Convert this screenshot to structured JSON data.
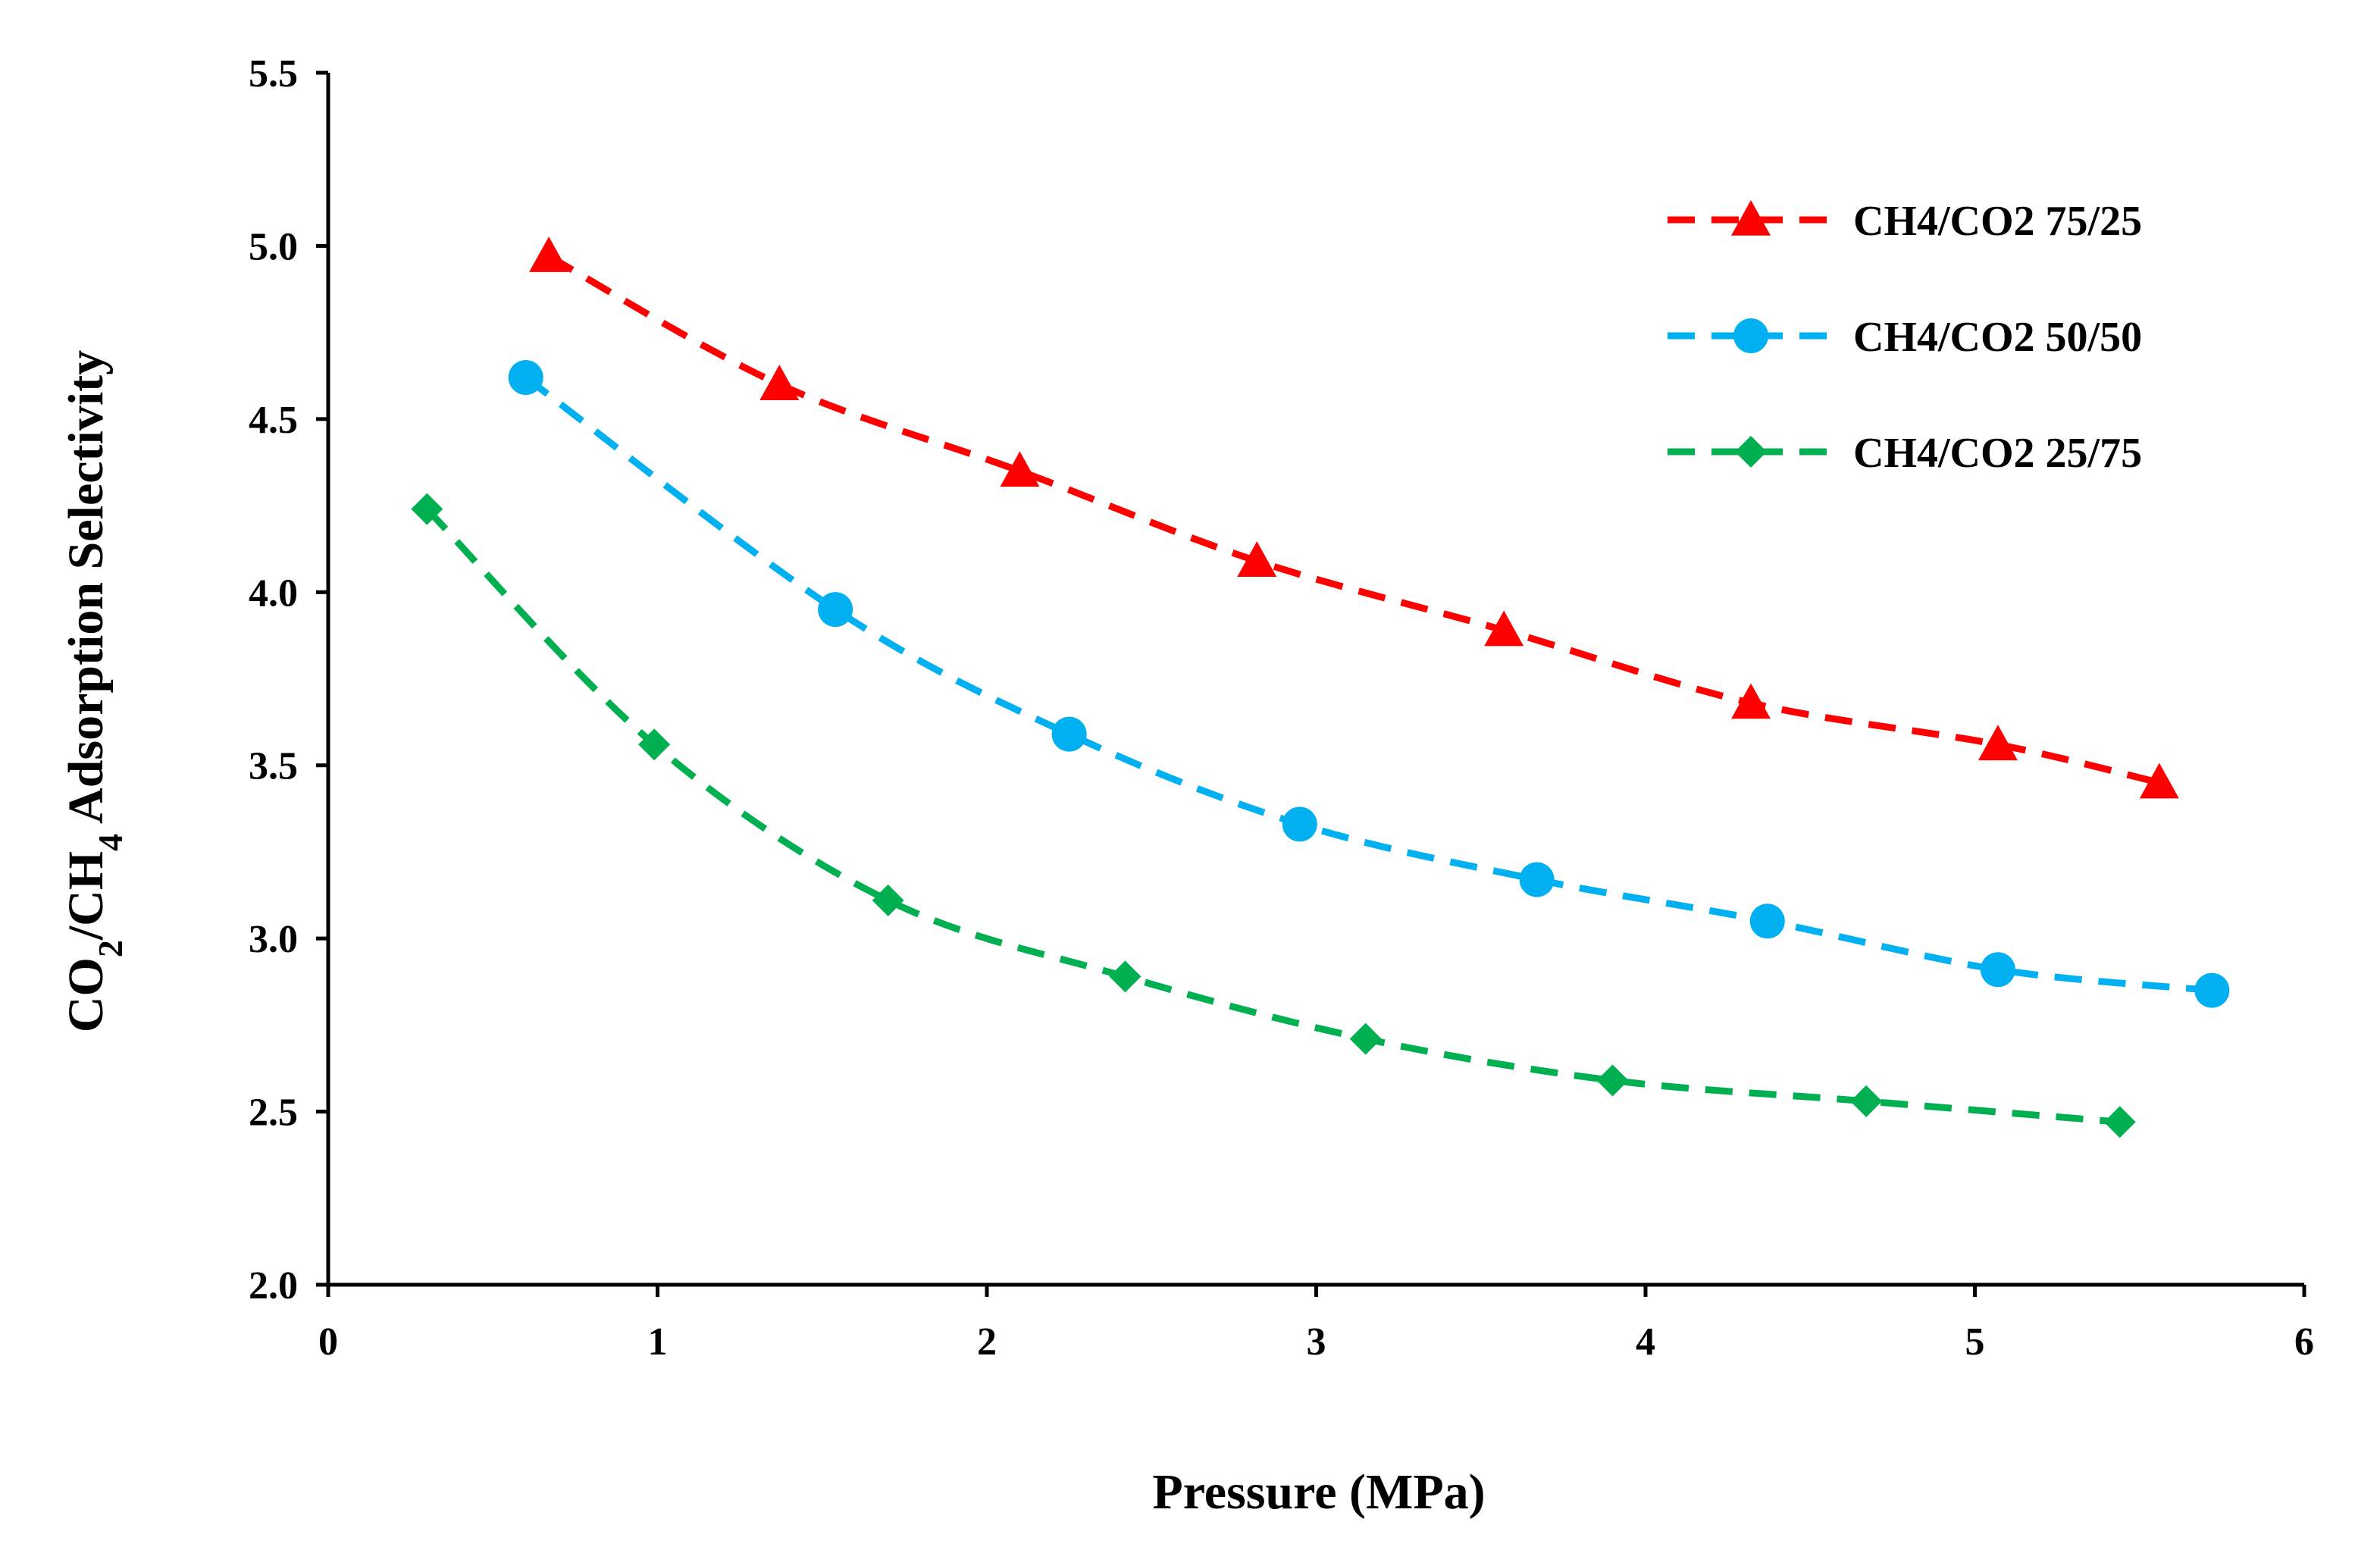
{
  "chart_data": {
    "type": "line",
    "title": "",
    "xlabel": "Pressure (MPa)",
    "ylabel": {
      "prefix": "CO",
      "sub1": "2",
      "middle": "/CH",
      "sub2": "4",
      "suffix": " Adsorption Selectivity"
    },
    "xlim": [
      0,
      6
    ],
    "ylim": [
      2.0,
      5.5
    ],
    "xticks": [
      "0",
      "1",
      "2",
      "3",
      "4",
      "5",
      "6"
    ],
    "yticks": [
      "2.0",
      "2.5",
      "3.0",
      "3.5",
      "4.0",
      "4.5",
      "5.0",
      "5.5"
    ],
    "grid": false,
    "legend_position": "top-right",
    "series": [
      {
        "name": "CH4/CO2 75/25",
        "color": "#ff0000",
        "marker": "triangle",
        "line": "dashed",
        "x": [
          0.67,
          1.37,
          2.1,
          2.82,
          3.57,
          4.32,
          5.07,
          5.56
        ],
        "y": [
          4.97,
          4.6,
          4.35,
          4.09,
          3.89,
          3.68,
          3.56,
          3.45
        ]
      },
      {
        "name": "CH4/CO2 50/50",
        "color": "#00b0f0",
        "marker": "circle",
        "line": "dashed",
        "x": [
          0.6,
          1.54,
          2.25,
          2.95,
          3.67,
          4.37,
          5.07,
          5.72
        ],
        "y": [
          4.62,
          3.95,
          3.59,
          3.33,
          3.17,
          3.05,
          2.91,
          2.85
        ]
      },
      {
        "name": "CH4/CO2 25/75",
        "color": "#00b050",
        "marker": "diamond",
        "line": "dashed",
        "x": [
          0.3,
          0.99,
          1.7,
          2.42,
          3.15,
          3.9,
          4.67,
          5.44
        ],
        "y": [
          4.24,
          3.56,
          3.11,
          2.89,
          2.71,
          2.59,
          2.53,
          2.47
        ]
      }
    ]
  }
}
